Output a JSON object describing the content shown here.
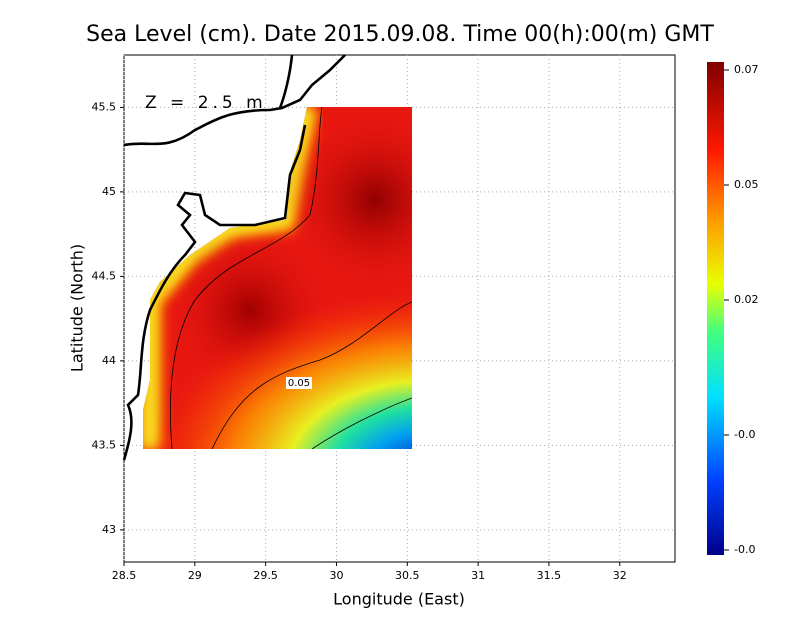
{
  "chart_data": {
    "type": "contour",
    "title": "Sea Level (cm). Date 2015.09.08. Time 00(h):00(m) GMT",
    "xlabel": "Longitude (East)",
    "ylabel": "Latitude (North)",
    "annotation": "Z = 2.5 m",
    "contour_labels": [
      0.05
    ],
    "xlim": [
      28.5,
      32.39
    ],
    "xticks": [
      28.5,
      29,
      29.5,
      30,
      30.5,
      31,
      31.5,
      32
    ],
    "ylim": [
      42.81,
      45.81
    ],
    "yticks": [
      43,
      43.5,
      44,
      44.5,
      45,
      45.5
    ],
    "grid": true,
    "colorbar": {
      "lim": [
        -0.027,
        0.0716
      ],
      "ticks": [
        0.07,
        {
          "value": 0.047,
          "label": "0.05"
        },
        {
          "value": 0.024,
          "label": "0.02"
        },
        {
          "value": -0.003,
          "label": "-0.0"
        },
        {
          "value": -0.026,
          "label": "-0.0"
        }
      ]
    }
  }
}
